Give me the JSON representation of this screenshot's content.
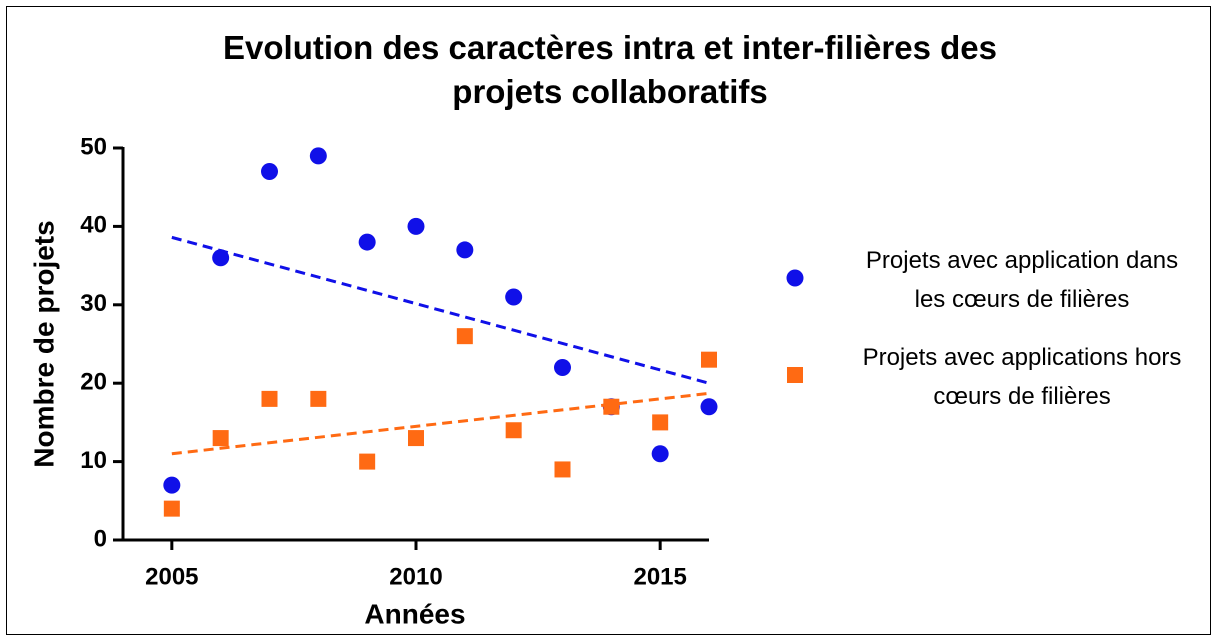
{
  "chart_data": {
    "type": "scatter",
    "title": "Evolution des caractères intra et inter-filières des projets collaboratifs",
    "x_label": "Années",
    "y_label": "Nombre de projets",
    "x": [
      2005,
      2006,
      2007,
      2008,
      2009,
      2010,
      2011,
      2012,
      2013,
      2014,
      2015,
      2016
    ],
    "series": [
      {
        "name": "Projets avec application dans les cœurs de filières",
        "color": "#1010e8",
        "marker": "circle",
        "values": [
          7,
          36,
          47,
          49,
          38,
          40,
          37,
          31,
          22,
          17,
          11,
          17
        ],
        "trend": {
          "x": [
            2005,
            2016
          ],
          "values": [
            38.6,
            20
          ]
        }
      },
      {
        "name": "Projets avec applications hors cœurs de filières",
        "color": "#ff6a13",
        "marker": "square",
        "values": [
          4,
          13,
          18,
          18,
          10,
          13,
          26,
          14,
          9,
          17,
          15,
          23
        ],
        "trend": {
          "x": [
            2005,
            2016
          ],
          "values": [
            11,
            18.7
          ]
        }
      }
    ],
    "xlim": [
      2004,
      2016
    ],
    "ylim": [
      0,
      50
    ],
    "xticks": [
      2005,
      2010,
      2015
    ],
    "yticks": [
      0,
      10,
      20,
      30,
      40,
      50
    ]
  }
}
